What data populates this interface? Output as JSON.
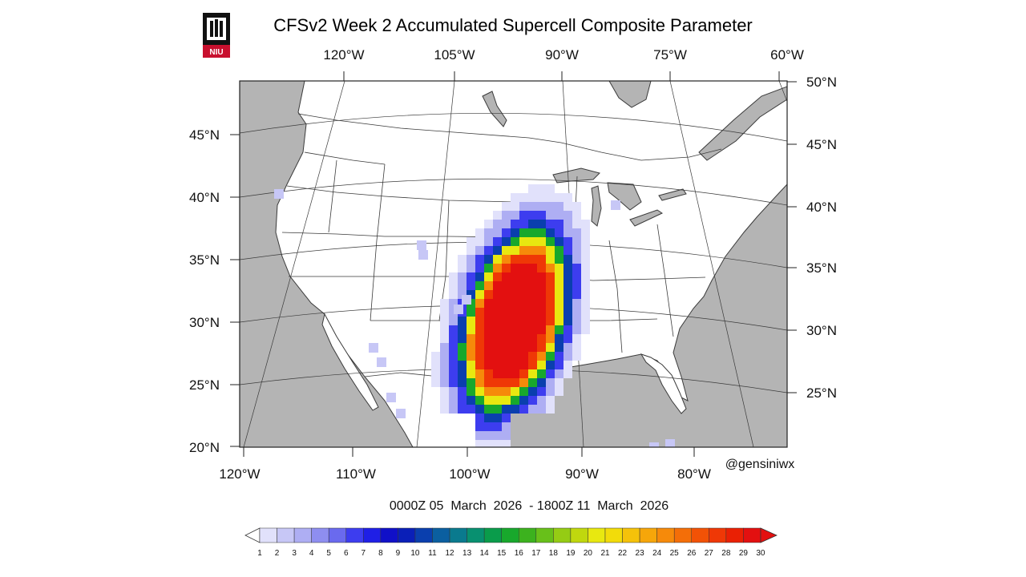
{
  "header": {
    "title": "CFSv2 Week 2 Accumulated Supercell Composite Parameter",
    "logo_text": "NIU"
  },
  "map": {
    "top_lon_labels": [
      "120°W",
      "105°W",
      "90°W",
      "75°W",
      "60°W"
    ],
    "bottom_lon_labels": [
      "120°W",
      "110°W",
      "100°W",
      "90°W",
      "80°W"
    ],
    "left_lat_labels": [
      "45°N",
      "40°N",
      "35°N",
      "30°N",
      "25°N",
      "20°N"
    ],
    "right_lat_labels": [
      "50°N",
      "45°N",
      "40°N",
      "35°N",
      "30°N",
      "25°N"
    ],
    "credit": "@gensiniwx",
    "date_range": "0000Z 05  March  2026  - 1800Z 11  March  2026",
    "colors": {
      "land": "#ffffff",
      "ocean": "#b4b4b4",
      "border": "#3a3a3a"
    }
  },
  "colorbar": {
    "labels": [
      "1",
      "2",
      "3",
      "4",
      "5",
      "6",
      "7",
      "8",
      "9",
      "10",
      "11",
      "12",
      "13",
      "14",
      "15",
      "16",
      "17",
      "18",
      "19",
      "20",
      "21",
      "22",
      "23",
      "24",
      "25",
      "26",
      "27",
      "28",
      "29",
      "30"
    ],
    "colors": [
      "#ffffff",
      "#e1e1fb",
      "#c7c7f6",
      "#aeaef3",
      "#8e8ef0",
      "#6a6aee",
      "#3d3def",
      "#1f1fe6",
      "#1010c8",
      "#0a1fb8",
      "#0a3fae",
      "#0b5fa0",
      "#0a7a8e",
      "#089070",
      "#0a9c4b",
      "#18a82c",
      "#3cb21e",
      "#68c01a",
      "#95cc14",
      "#c0d80e",
      "#e8e810",
      "#f2dc0a",
      "#f5c20a",
      "#f6a60a",
      "#f68a0a",
      "#f46e08",
      "#f25206",
      "#ef3806",
      "#ea2004",
      "#e31010"
    ],
    "arrow_color": "#e31010"
  }
}
